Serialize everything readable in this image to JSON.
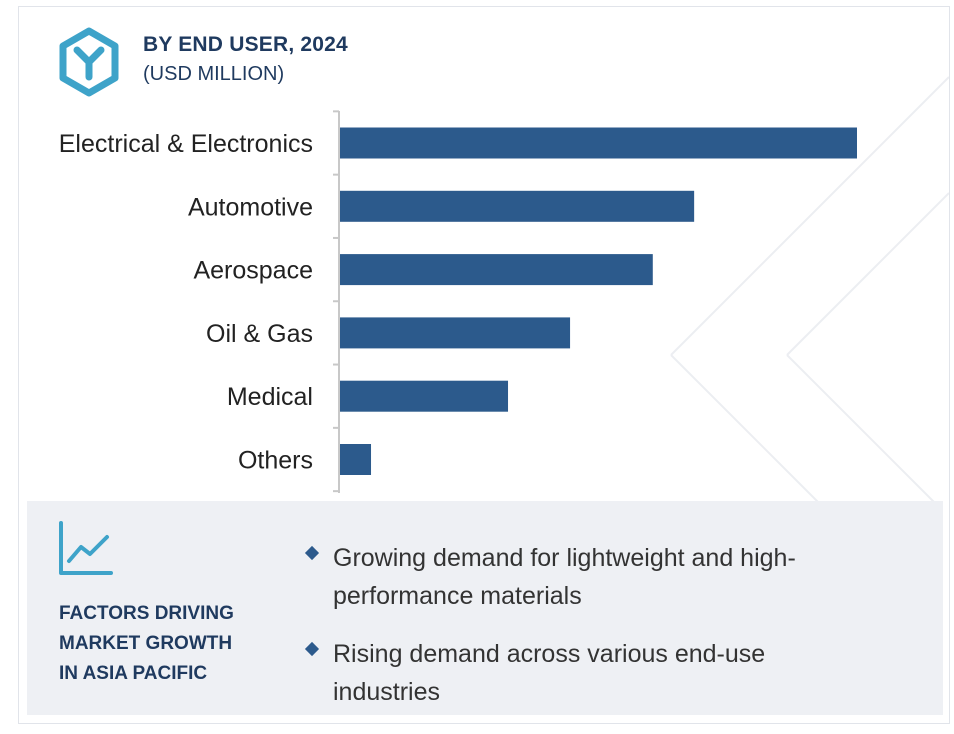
{
  "header": {
    "title": "BY END USER, 2024",
    "subtitle": "(USD MILLION)",
    "logo_icon": "hexagon-y-logo-icon"
  },
  "colors": {
    "bar": "#2c5a8c",
    "accent": "#3ea3c9",
    "title": "#1f3a5f",
    "panel_bg": "#eef0f4"
  },
  "chart_data": {
    "type": "bar",
    "orientation": "horizontal",
    "title": "BY END USER, 2024",
    "subtitle": "(USD MILLION)",
    "categories": [
      "Electrical & Electronics",
      "Automotive",
      "Aerospace",
      "Oil & Gas",
      "Medical",
      "Others"
    ],
    "values": [
      100,
      68.5,
      60.5,
      44.5,
      32.5,
      6
    ],
    "xlim": [
      0,
      100
    ],
    "grid": false,
    "legend": "none"
  },
  "factors": {
    "icon": "trend-line-chart-icon",
    "title_lines": [
      "FACTORS DRIVING",
      "MARKET GROWTH",
      "IN ASIA PACIFIC"
    ],
    "bullets": [
      {
        "lines": [
          "Growing demand for lightweight and high-",
          "performance materials"
        ]
      },
      {
        "lines": [
          "Rising demand across various end-use",
          "industries"
        ]
      }
    ]
  }
}
